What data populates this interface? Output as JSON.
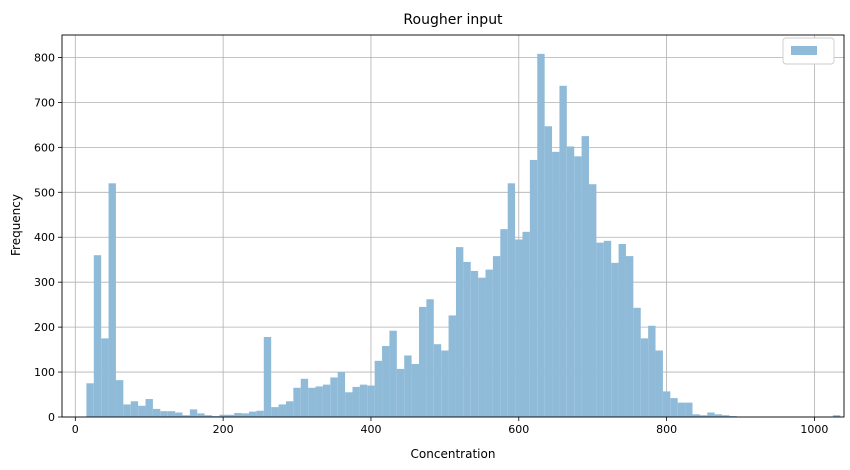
{
  "chart_data": {
    "type": "bar",
    "title": "Rougher input",
    "xlabel": "Concentration",
    "ylabel": "Frequency",
    "xlim": [
      -18,
      1040
    ],
    "ylim": [
      0,
      850
    ],
    "xticks": [
      0,
      200,
      400,
      600,
      800,
      1000
    ],
    "yticks": [
      0,
      100,
      200,
      300,
      400,
      500,
      600,
      700,
      800
    ],
    "grid": true,
    "legend": {
      "placement": "top-right",
      "entries": [
        ""
      ]
    },
    "bar_color": "#8fbbd9",
    "bin_start": 15,
    "bin_width": 10,
    "series": [
      {
        "values": [
          75,
          360,
          175,
          520,
          82,
          28,
          35,
          25,
          40,
          18,
          13,
          13,
          10,
          4,
          17,
          8,
          4,
          2,
          5,
          5,
          9,
          8,
          12,
          14,
          178,
          22,
          28,
          35,
          65,
          85,
          65,
          68,
          72,
          88,
          100,
          55,
          67,
          72,
          70,
          125,
          158,
          192,
          107,
          137,
          118,
          245,
          262,
          162,
          148,
          226,
          378,
          345,
          325,
          310,
          328,
          358,
          418,
          520,
          395,
          412,
          572,
          808,
          647,
          590,
          737,
          602,
          580,
          625,
          518,
          388,
          392,
          343,
          385,
          358,
          243,
          175,
          203,
          148,
          57,
          42,
          32,
          32,
          6,
          4,
          10,
          6,
          4,
          2,
          1,
          1,
          1,
          0,
          0,
          0,
          0,
          0,
          0,
          0,
          0,
          0,
          0,
          4
        ]
      }
    ]
  }
}
